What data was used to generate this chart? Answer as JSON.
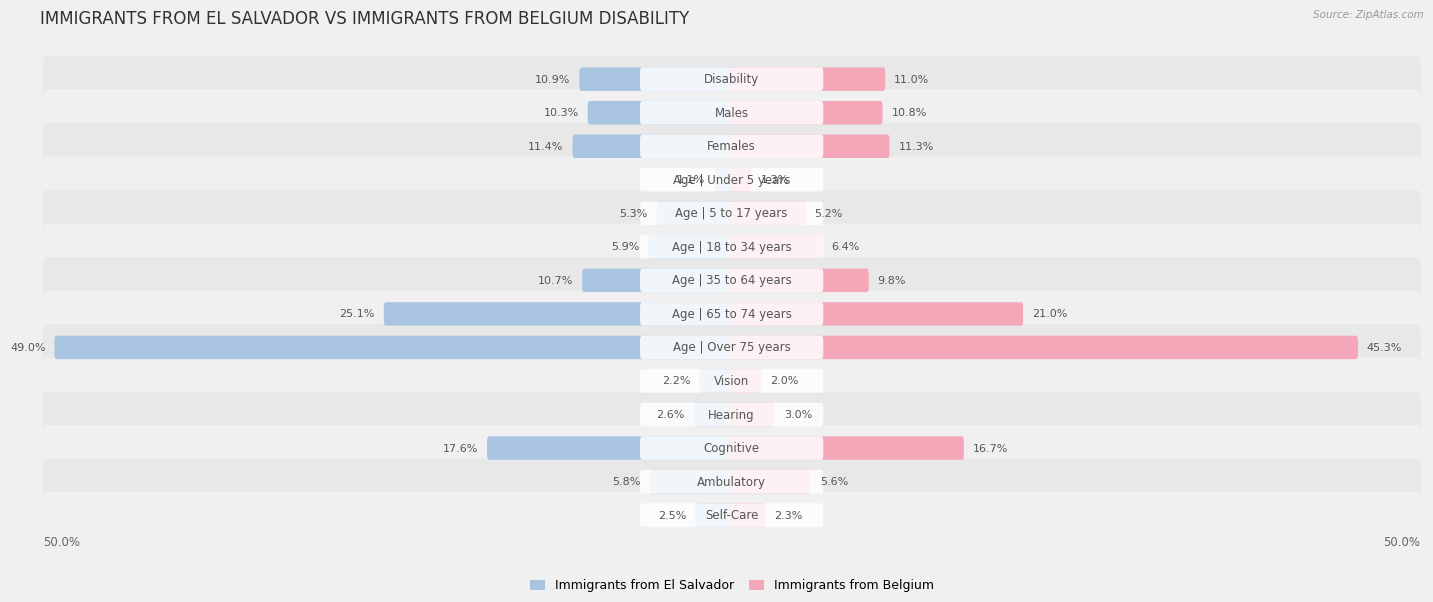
{
  "title": "IMMIGRANTS FROM EL SALVADOR VS IMMIGRANTS FROM BELGIUM DISABILITY",
  "source": "Source: ZipAtlas.com",
  "categories": [
    "Disability",
    "Males",
    "Females",
    "Age | Under 5 years",
    "Age | 5 to 17 years",
    "Age | 18 to 34 years",
    "Age | 35 to 64 years",
    "Age | 65 to 74 years",
    "Age | Over 75 years",
    "Vision",
    "Hearing",
    "Cognitive",
    "Ambulatory",
    "Self-Care"
  ],
  "left_values": [
    10.9,
    10.3,
    11.4,
    1.1,
    5.3,
    5.9,
    10.7,
    25.1,
    49.0,
    2.2,
    2.6,
    17.6,
    5.8,
    2.5
  ],
  "right_values": [
    11.0,
    10.8,
    11.3,
    1.3,
    5.2,
    6.4,
    9.8,
    21.0,
    45.3,
    2.0,
    3.0,
    16.7,
    5.6,
    2.3
  ],
  "left_color": "#a8c4e0",
  "right_color": "#f4a7b9",
  "left_label": "Immigrants from El Salvador",
  "right_label": "Immigrants from Belgium",
  "max_value": 50.0,
  "bg_color": "#f0f0f0",
  "row_color_1": "#e8e8e8",
  "row_color_2": "#f0f0f0",
  "title_fontsize": 12,
  "label_fontsize": 8.5,
  "value_fontsize": 8.0,
  "axis_fontsize": 8.5
}
